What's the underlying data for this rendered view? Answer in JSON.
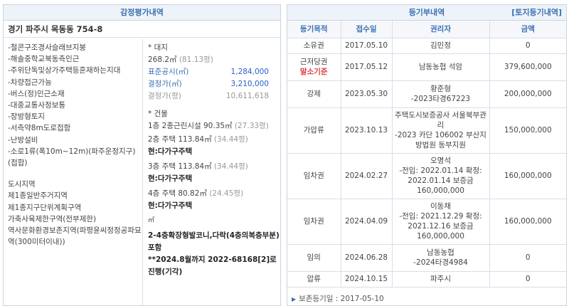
{
  "appraisal": {
    "title": "감정평가내역",
    "address": "경기 파주시 목동동 754-8",
    "features": [
      "-철콘구조경사슬래브지붕",
      "-해솔중학교북동측인근",
      "-주위단독및상가주택등혼재하는지대",
      "-차량접근가능",
      "-버스(정)인근소재",
      "-대중교통사정보통",
      "-장방형토지",
      "-서측약8m도로접함",
      "-난방설비",
      "-소로1류(폭10m~12m)(파주운정지구)(접합)"
    ],
    "zoning_label": "도시지역",
    "zoning": [
      "제1종일반주거지역",
      "제1종지구단위계획구역",
      "가축사육제한구역(전부제한)",
      "역사문화환경보존지역(파평윤씨정정공파묘역(300미터이내))"
    ],
    "land_header": "* 대지",
    "land_area": "268.2㎡",
    "land_area_pyeong": "(81.13평)",
    "official_price_label": "표준공시(㎡)",
    "official_price": "1,284,000",
    "decision_price_label": "결정가(㎡)",
    "decision_price": "3,210,000",
    "decision_pyeong_label": "결정가(평)",
    "decision_pyeong": "10,611,618",
    "building_header": "* 건물",
    "floor1": "1층 2종근린시설 90.35㎡",
    "floor1_pyeong": "(27.33평)",
    "floor2": "2층 주택 113.84㎡",
    "floor2_pyeong": "(34.44평)",
    "floor2_now": "현:다가구주택",
    "floor3": "3층 주택 113.84㎡",
    "floor3_pyeong": "(34.44평)",
    "floor3_now": "현:다가구주택",
    "floor4": "4층 주택 80.82㎡",
    "floor4_pyeong": "(24.45평)",
    "floor4_now": "현:다가구주택",
    "unit_sqm": "㎡",
    "note1": "2-4층확장형발코니,다락(4층의복층부분)포함",
    "note2": "**2024.8월까지 2022-68168[2]로 진행(기각)"
  },
  "registry": {
    "title": "등기부내역",
    "link": "[토지등기내역]",
    "headers": [
      "등기목적",
      "접수일",
      "권리자",
      "금액"
    ],
    "rows": [
      {
        "purpose": "소유권",
        "date": "2017.05.10",
        "holder": "김민정",
        "amount": "0"
      },
      {
        "purpose": "근저당권",
        "purpose_sub": "말소기준",
        "date": "2017.05.12",
        "holder": "남동농협 석암",
        "amount": "379,600,000"
      },
      {
        "purpose": "강제",
        "date": "2023.05.30",
        "holder": "황준형",
        "holder_sub": "-2023타경67223",
        "amount": "200,000,000"
      },
      {
        "purpose": "가압류",
        "date": "2023.10.13",
        "holder": "주택도시보증공사 서울북부관리",
        "holder_sub": "-2023 카단 106002 부산지방법원 동부지원",
        "amount": "150,000,000"
      },
      {
        "purpose": "임차권",
        "date": "2024.02.27",
        "holder": "오명석",
        "holder_sub": "-전입: 2022.01.14 확정: 2022.01.14 보증금 160,000,000",
        "amount": "160,000,000"
      },
      {
        "purpose": "임차권",
        "date": "2024.04.09",
        "holder": "이동채",
        "holder_sub": "-전입: 2021.12.29 확정: 2021.12.16 보증금 160,000,000",
        "amount": "160,000,000"
      },
      {
        "purpose": "임의",
        "date": "2024.06.28",
        "holder": "남동농협",
        "holder_sub": "-2024타경4984",
        "amount": "0"
      },
      {
        "purpose": "압류",
        "date": "2024.10.15",
        "holder": "파주시",
        "amount": "0"
      }
    ],
    "footer": "보존등기일 : 2017-05-10"
  },
  "colors": {
    "accent": "#3b6fb4",
    "red": "#e23b3b",
    "blue": "#2d5cc8"
  }
}
